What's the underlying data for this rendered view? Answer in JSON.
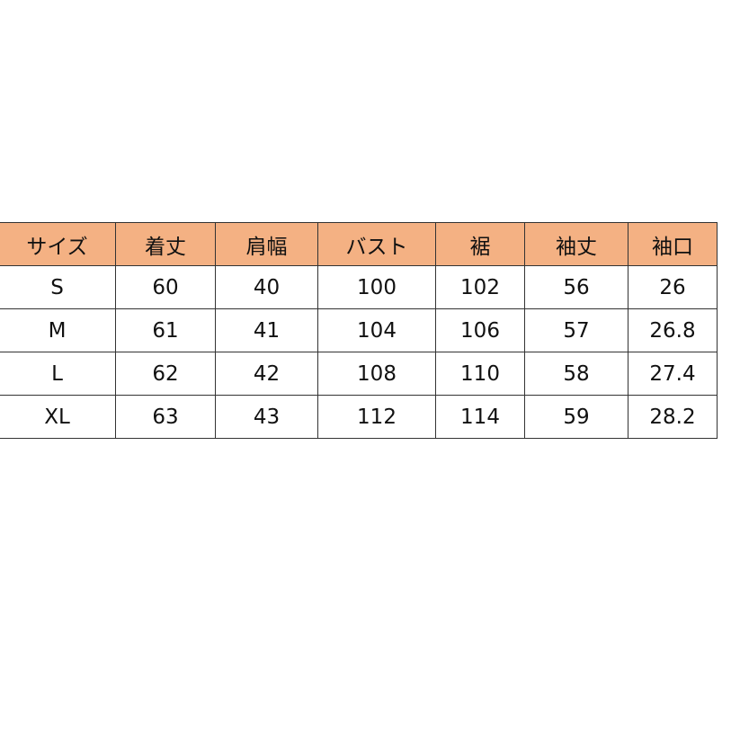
{
  "table": {
    "header_color": "#f4b183",
    "headers": [
      "サイズ",
      "着丈",
      "肩幅",
      "バスト",
      "裾",
      "袖丈",
      "袖口"
    ],
    "rows": [
      [
        "S",
        "60",
        "40",
        "100",
        "102",
        "56",
        "26"
      ],
      [
        "M",
        "61",
        "41",
        "104",
        "106",
        "57",
        "26.8"
      ],
      [
        "L",
        "62",
        "42",
        "108",
        "110",
        "58",
        "27.4"
      ],
      [
        "XL",
        "63",
        "43",
        "112",
        "114",
        "59",
        "28.2"
      ]
    ]
  }
}
